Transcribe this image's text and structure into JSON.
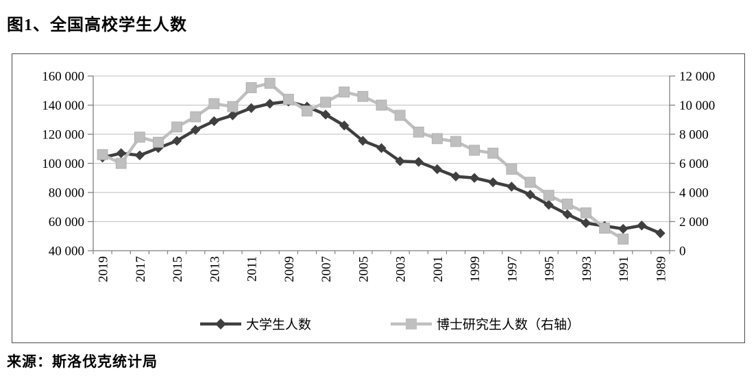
{
  "page": {
    "title": "图1、全国高校学生人数",
    "source": "来源：斯洛伐克统计局"
  },
  "chart_data": {
    "type": "line",
    "title": "图1、全国高校学生人数",
    "source": "来源：斯洛伐克统计局",
    "categories": [
      2019,
      2018,
      2017,
      2016,
      2015,
      2014,
      2013,
      2012,
      2011,
      2010,
      2009,
      2008,
      2007,
      2006,
      2005,
      2004,
      2003,
      2002,
      2001,
      2000,
      1999,
      1998,
      1997,
      1996,
      1995,
      1994,
      1993,
      1992,
      1991,
      1990,
      1989
    ],
    "x_tick_labels": [
      "2019",
      "2017",
      "2015",
      "2013",
      "2011",
      "2009",
      "2007",
      "2005",
      "2003",
      "2001",
      "1999",
      "1997",
      "1995",
      "1993",
      "1991",
      "1989"
    ],
    "series": [
      {
        "name": "大学生人数",
        "axis": "left",
        "marker": "diamond",
        "color": "#3f3f3f",
        "values": [
          104000,
          107000,
          105500,
          110500,
          115500,
          123000,
          129000,
          133000,
          138000,
          141000,
          142500,
          139000,
          133500,
          126000,
          115500,
          110500,
          101500,
          101000,
          96000,
          91000,
          90000,
          87000,
          84000,
          78500,
          71500,
          65000,
          59000,
          57000,
          55000,
          57300,
          52000
        ]
      },
      {
        "name": "博士研究生人数（右轴）",
        "axis": "right",
        "marker": "square",
        "color": "#bfbfbf",
        "values": [
          6600,
          6000,
          7800,
          7450,
          8500,
          9200,
          10100,
          9900,
          11200,
          11500,
          10400,
          9600,
          10200,
          10900,
          10600,
          10000,
          9300,
          8150,
          7700,
          7500,
          6900,
          6700,
          5600,
          4700,
          3800,
          3200,
          2600,
          1550,
          800,
          null,
          null
        ]
      }
    ],
    "axes": {
      "left": {
        "min": 40000,
        "max": 160000,
        "step": 20000,
        "tick_labels": [
          "160 000",
          "140 000",
          "120 000",
          "100 000",
          "80 000",
          "60 000",
          "40 000"
        ]
      },
      "right": {
        "min": 0,
        "max": 12000,
        "step": 2000,
        "tick_labels": [
          "12 000",
          "10 000",
          "8 000",
          "6 000",
          "4 000",
          "2 000",
          "0"
        ]
      }
    },
    "grid": "horizontal",
    "legend_position": "bottom",
    "colors": {
      "gridline": "#c9c9c9",
      "axis_line": "#7f7f7f",
      "frame_border": "#4a4a4a",
      "series1": "#3f3f3f",
      "series2": "#bfbfbf"
    }
  }
}
